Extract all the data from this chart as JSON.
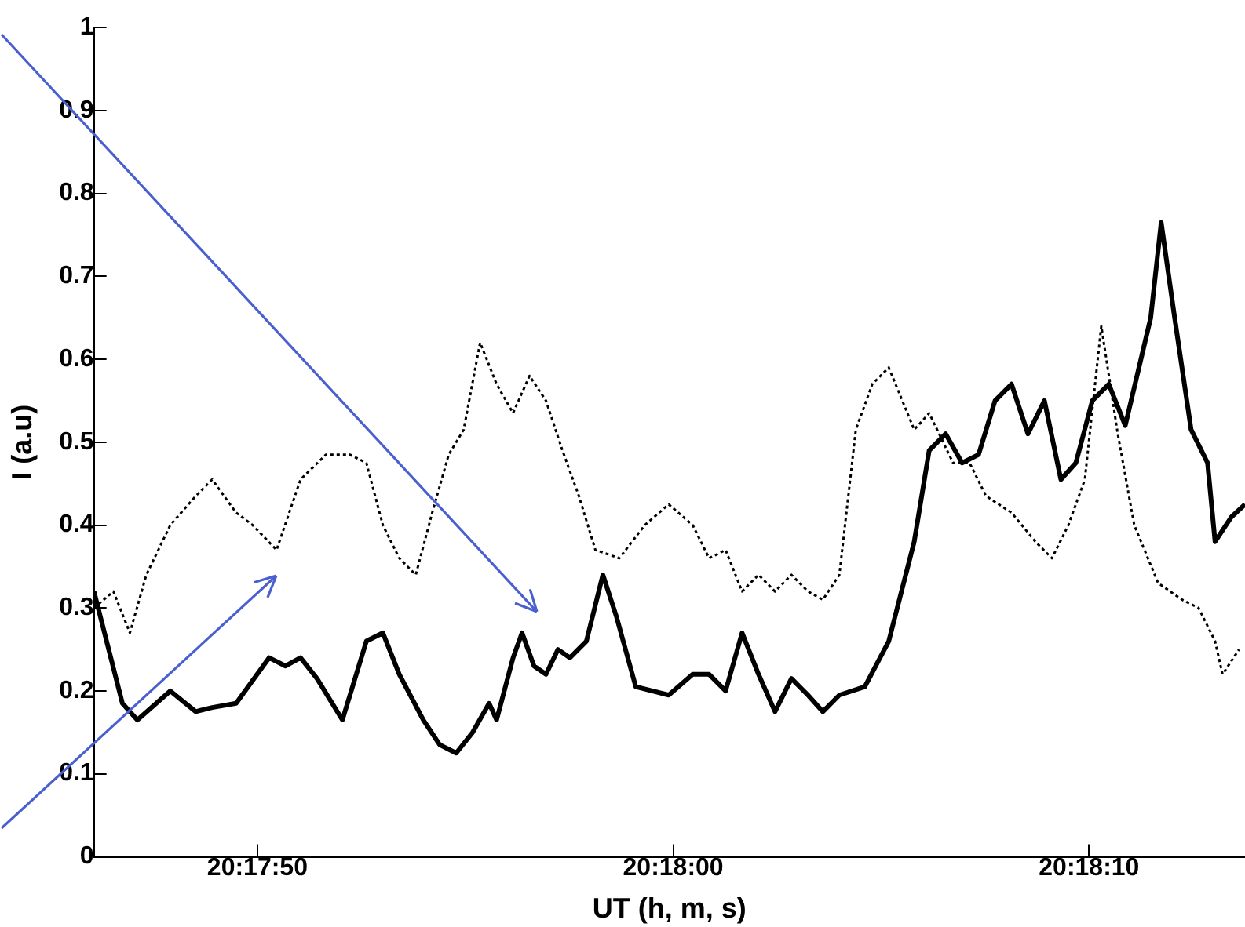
{
  "chart_data": {
    "type": "line",
    "xlabel": "UT (h, m, s)",
    "ylabel": "I (a.u)",
    "xlim": [
      20.29613,
      20.30382
    ],
    "xticks": [
      {
        "value": 20.297222,
        "label": "20:17:50"
      },
      {
        "value": 20.3,
        "label": "20:18:00"
      },
      {
        "value": 20.302778,
        "label": "20:18:10"
      }
    ],
    "ylim": [
      0,
      1
    ],
    "yticks": [
      0,
      0.1,
      0.2,
      0.3,
      0.4,
      0.5,
      0.6,
      0.7,
      0.8,
      0.9,
      1
    ],
    "grid": false,
    "legend": false,
    "marker": "none",
    "series": [
      {
        "color": "#000000",
        "line_style": "dotted",
        "x": [
          20.29613,
          20.29626,
          20.29637,
          20.29648,
          20.29664,
          20.29681,
          20.29692,
          20.29708,
          20.29719,
          20.29735,
          20.29751,
          20.29768,
          20.29784,
          20.29795,
          20.29806,
          20.29817,
          20.29828,
          20.29839,
          20.2985,
          20.2986,
          20.29871,
          20.29882,
          20.29893,
          20.29904,
          20.29915,
          20.29926,
          20.29937,
          20.29948,
          20.29964,
          20.29981,
          20.29997,
          20.30013,
          20.30024,
          20.30035,
          20.30046,
          20.30057,
          20.30068,
          20.30079,
          20.3009,
          20.301,
          20.30111,
          20.30122,
          20.30133,
          20.30144,
          20.30161,
          20.30171,
          20.30187,
          20.30198,
          20.30209,
          20.30226,
          20.30242,
          20.30253,
          20.30264,
          20.30275,
          20.30286,
          20.30297,
          20.30308,
          20.30324,
          20.3034,
          20.30351,
          20.30362,
          20.30367,
          20.30378
        ],
        "values": [
          0.3,
          0.32,
          0.27,
          0.34,
          0.4,
          0.435,
          0.455,
          0.415,
          0.4,
          0.37,
          0.455,
          0.485,
          0.485,
          0.475,
          0.4,
          0.36,
          0.34,
          0.415,
          0.485,
          0.515,
          0.62,
          0.57,
          0.535,
          0.58,
          0.55,
          0.49,
          0.435,
          0.37,
          0.36,
          0.4,
          0.425,
          0.4,
          0.36,
          0.37,
          0.32,
          0.34,
          0.32,
          0.34,
          0.32,
          0.31,
          0.34,
          0.515,
          0.57,
          0.59,
          0.515,
          0.535,
          0.475,
          0.475,
          0.435,
          0.415,
          0.38,
          0.36,
          0.4,
          0.455,
          0.64,
          0.51,
          0.4,
          0.33,
          0.31,
          0.3,
          0.26,
          0.22,
          0.25
        ]
      },
      {
        "color": "#000000",
        "line_style": "solid",
        "x": [
          20.29613,
          20.29632,
          20.29642,
          20.29664,
          20.29681,
          20.29692,
          20.29708,
          20.2973,
          20.29741,
          20.29751,
          20.29762,
          20.29779,
          20.29795,
          20.29806,
          20.29817,
          20.29833,
          20.29844,
          20.29855,
          20.29866,
          20.29877,
          20.29882,
          20.29893,
          20.29899,
          20.29907,
          20.29915,
          20.29923,
          20.29931,
          20.29942,
          20.29953,
          20.29962,
          20.29975,
          20.29997,
          20.30013,
          20.30024,
          20.30035,
          20.30046,
          20.30057,
          20.30068,
          20.30079,
          20.3009,
          20.301,
          20.30111,
          20.30128,
          20.30144,
          20.30161,
          20.30171,
          20.30182,
          20.30193,
          20.30204,
          20.30215,
          20.30226,
          20.30237,
          20.30248,
          20.30259,
          20.30269,
          20.3028,
          20.30291,
          20.30302,
          20.30319,
          20.30326,
          20.30335,
          20.30346,
          20.30357,
          20.30362,
          20.30373,
          20.30382
        ],
        "values": [
          0.32,
          0.185,
          0.165,
          0.2,
          0.175,
          0.18,
          0.185,
          0.24,
          0.23,
          0.24,
          0.215,
          0.165,
          0.26,
          0.27,
          0.22,
          0.165,
          0.135,
          0.125,
          0.15,
          0.185,
          0.165,
          0.24,
          0.27,
          0.23,
          0.22,
          0.25,
          0.24,
          0.26,
          0.34,
          0.29,
          0.205,
          0.195,
          0.22,
          0.22,
          0.2,
          0.27,
          0.22,
          0.175,
          0.215,
          0.195,
          0.175,
          0.195,
          0.205,
          0.26,
          0.38,
          0.49,
          0.51,
          0.475,
          0.485,
          0.55,
          0.57,
          0.51,
          0.55,
          0.455,
          0.475,
          0.55,
          0.57,
          0.52,
          0.65,
          0.765,
          0.65,
          0.515,
          0.475,
          0.38,
          0.41,
          0.425
        ]
      }
    ]
  }
}
